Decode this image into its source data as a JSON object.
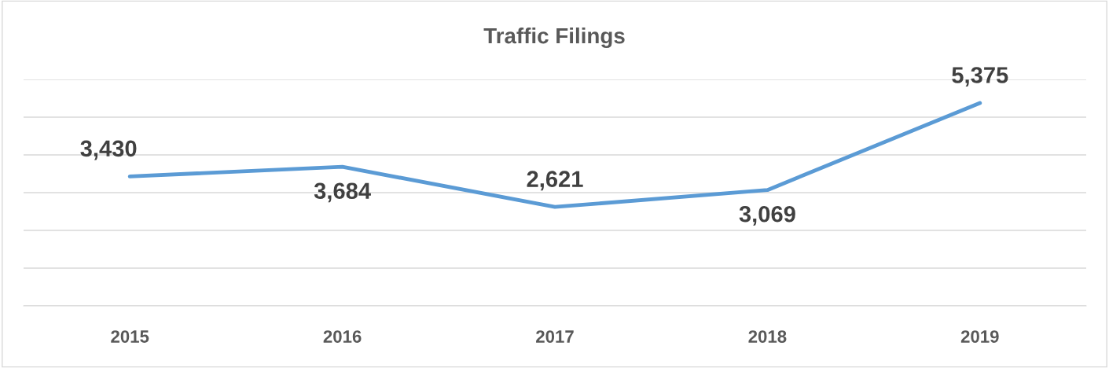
{
  "chart_data": {
    "type": "line",
    "title": "Traffic Filings",
    "categories": [
      "2015",
      "2016",
      "2017",
      "2018",
      "2019"
    ],
    "series": [
      {
        "color": "#5b9bd5",
        "values": [
          3430,
          3684,
          2621,
          3069,
          5375
        ],
        "value_labels": [
          "3,430",
          "3,684",
          "2,621",
          "3,069",
          "5,375"
        ]
      }
    ],
    "ylim": [
      0,
      6000
    ],
    "yticks": [
      {
        "value": 0,
        "label": null
      },
      {
        "value": 1000,
        "label": null
      },
      {
        "value": 2000,
        "label": null
      },
      {
        "value": 3000,
        "label": null
      },
      {
        "value": 4000,
        "label": null
      },
      {
        "value": 5000,
        "label": null
      },
      {
        "value": 6000,
        "label": null
      }
    ],
    "tick_labels": "x",
    "grid": "y",
    "legend": false,
    "marker": "none",
    "line_style": "solid"
  }
}
